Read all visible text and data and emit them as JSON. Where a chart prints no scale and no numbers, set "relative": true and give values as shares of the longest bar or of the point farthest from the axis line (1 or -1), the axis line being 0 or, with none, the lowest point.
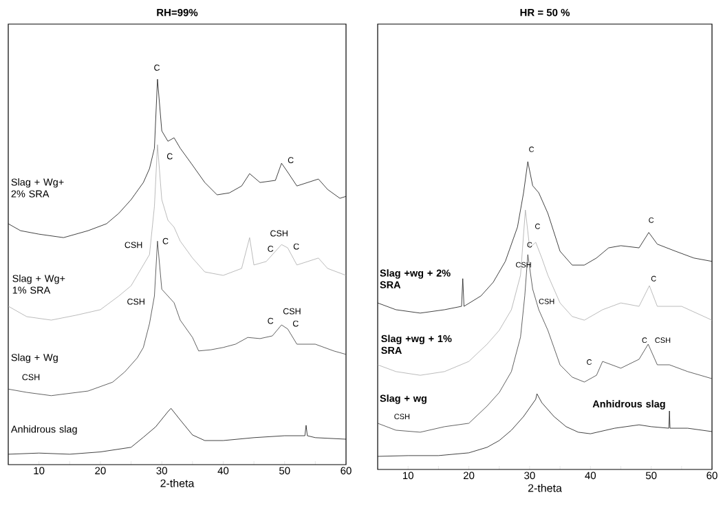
{
  "chart_data": [
    {
      "type": "line",
      "title": "RH=99%",
      "xlabel": "2-theta",
      "relative": true,
      "xlim": [
        5,
        60
      ],
      "xticks": [
        10,
        {
          "value": 15,
          "label": null
        },
        20,
        {
          "value": 25,
          "label": null
        },
        30,
        {
          "value": 35,
          "label": null
        },
        40,
        {
          "value": 45,
          "label": null
        },
        50,
        {
          "value": 55,
          "label": null
        },
        60
      ],
      "series": [
        {
          "name": "Anhidrous slag",
          "color": "#111111",
          "x": [
            5,
            10,
            15,
            20,
            25,
            27,
            29,
            31,
            31.5,
            33,
            35,
            37,
            40,
            45,
            50,
            53.3,
            53.5,
            53.7,
            55,
            60
          ],
          "values": [
            0.027,
            0.03,
            0.027,
            0.033,
            0.045,
            0.071,
            0.098,
            0.1375,
            0.146,
            0.116,
            0.077,
            0.0625,
            0.0625,
            0.07,
            0.075,
            0.075,
            0.102,
            0.075,
            0.07,
            0.066
          ]
        },
        {
          "name": "Slag + Wg",
          "color": "#3a3a3a",
          "x": [
            5,
            8,
            12,
            18,
            22,
            24,
            26,
            27,
            28,
            28.8,
            29.3,
            30,
            31,
            32,
            33,
            35,
            36,
            38,
            40,
            42,
            44,
            46,
            48,
            49.5,
            50.5,
            52,
            55,
            58,
            60
          ],
          "values": [
            0.196,
            0.1875,
            0.179,
            0.191,
            0.214,
            0.241,
            0.277,
            0.304,
            0.366,
            0.4375,
            0.58,
            0.455,
            0.4375,
            0.42,
            0.375,
            0.33,
            0.295,
            0.298,
            0.304,
            0.3125,
            0.33,
            0.327,
            0.334,
            0.3625,
            0.352,
            0.3125,
            0.3125,
            0.295,
            0.286
          ]
        },
        {
          "name": "Slag + Wg+ 1% SRA",
          "color": "#aaaaaa",
          "x": [
            5,
            8,
            12,
            16,
            20,
            23,
            25,
            27,
            28,
            28.8,
            29.3,
            30,
            31,
            32,
            33,
            35,
            37,
            40,
            43,
            44.3,
            45,
            47,
            49.5,
            50.5,
            52,
            55.5,
            57,
            60
          ],
          "values": [
            0.411,
            0.384,
            0.375,
            0.3875,
            0.402,
            0.4375,
            0.464,
            0.518,
            0.545,
            0.67,
            0.83,
            0.6875,
            0.634,
            0.616,
            0.58,
            0.536,
            0.5,
            0.491,
            0.509,
            0.589,
            0.518,
            0.527,
            0.571,
            0.5625,
            0.518,
            0.536,
            0.509,
            0.491
          ]
        },
        {
          "name": "Slag + Wg+ 2% SRA",
          "color": "#111111",
          "x": [
            5,
            7,
            10,
            14,
            18,
            21,
            23,
            25,
            27,
            28,
            28.8,
            29.3,
            30,
            31,
            32,
            33,
            35,
            37,
            39,
            41,
            43,
            44.3,
            46,
            48.5,
            49.5,
            50.5,
            52,
            55.5,
            57,
            59,
            60
          ],
          "values": [
            0.625,
            0.607,
            0.598,
            0.589,
            0.607,
            0.625,
            0.652,
            0.6875,
            0.732,
            0.768,
            0.821,
            1,
            0.866,
            0.839,
            0.848,
            0.821,
            0.777,
            0.732,
            0.7,
            0.705,
            0.723,
            0.755,
            0.732,
            0.7375,
            0.782,
            0.759,
            0.723,
            0.741,
            0.714,
            0.691,
            0.696
          ]
        }
      ],
      "annotations": [
        "C",
        "C",
        "C",
        "CSH",
        "CSH",
        "C",
        "C",
        "C",
        "CSH",
        "CSH",
        "C",
        "C",
        "CSH"
      ]
    },
    {
      "type": "line",
      "title": "HR = 50 %",
      "xlabel": "2-theta",
      "relative": true,
      "xlim": [
        5,
        60
      ],
      "xticks": [
        10,
        {
          "value": 15,
          "label": null
        },
        20,
        {
          "value": 25,
          "label": null
        },
        30,
        {
          "value": 35,
          "label": null
        },
        40,
        {
          "value": 45,
          "label": null
        },
        50,
        {
          "value": 55,
          "label": null
        },
        60
      ],
      "series": [
        {
          "name": "Anhidrous slag",
          "color": "#111111",
          "x": [
            5,
            10,
            15,
            20,
            23,
            25,
            27,
            29,
            31,
            31.2,
            32,
            34,
            36,
            38,
            40,
            44,
            48,
            50,
            52.9,
            53,
            53.1,
            56,
            60
          ],
          "values": [
            0.0425,
            0.045,
            0.045,
            0.054,
            0.072,
            0.094,
            0.1275,
            0.172,
            0.228,
            0.246,
            0.217,
            0.172,
            0.139,
            0.121,
            0.116,
            0.134,
            0.145,
            0.139,
            0.134,
            0.19,
            0.134,
            0.134,
            0.123
          ]
        },
        {
          "name": "Slag + wg",
          "color": "#3a3a3a",
          "x": [
            5,
            8,
            12,
            16,
            20,
            23,
            25,
            27,
            28.5,
            29.2,
            29.7,
            30.5,
            31.5,
            33,
            35,
            37,
            39,
            41,
            42,
            45,
            48,
            49.5,
            51,
            53,
            56,
            60
          ],
          "values": [
            0.15,
            0.1275,
            0.121,
            0.139,
            0.15,
            0.206,
            0.25,
            0.318,
            0.43,
            0.564,
            0.698,
            0.586,
            0.519,
            0.452,
            0.34,
            0.3,
            0.284,
            0.306,
            0.351,
            0.329,
            0.358,
            0.407,
            0.34,
            0.34,
            0.318,
            0.295
          ]
        },
        {
          "name": "Slag +wg + 1% SRA",
          "color": "#aaaaaa",
          "x": [
            5,
            8,
            12,
            16,
            20,
            23,
            25,
            27,
            28.5,
            29.3,
            30,
            31,
            32,
            33,
            35,
            37,
            39,
            42,
            45,
            48,
            49.7,
            51,
            55,
            60
          ],
          "values": [
            0.34,
            0.318,
            0.306,
            0.318,
            0.351,
            0.407,
            0.452,
            0.519,
            0.631,
            0.843,
            0.72,
            0.738,
            0.687,
            0.631,
            0.541,
            0.497,
            0.485,
            0.519,
            0.541,
            0.53,
            0.597,
            0.53,
            0.53,
            0.485
          ]
        },
        {
          "name": "Slag +wg + 2% SRA",
          "color": "#111111",
          "x": [
            5,
            8,
            12,
            16,
            18.8,
            19,
            19.2,
            22,
            24,
            26,
            28,
            29,
            29.7,
            30.5,
            31.5,
            33,
            35,
            37,
            39,
            41,
            43,
            45,
            48,
            49.6,
            51,
            54,
            57,
            60
          ],
          "values": [
            0.541,
            0.519,
            0.508,
            0.519,
            0.53,
            0.62,
            0.53,
            0.564,
            0.608,
            0.676,
            0.7875,
            0.899,
            1,
            0.922,
            0.899,
            0.832,
            0.709,
            0.664,
            0.664,
            0.687,
            0.72,
            0.727,
            0.72,
            0.77,
            0.732,
            0.709,
            0.687,
            0.676
          ]
        }
      ],
      "annotations": [
        "C",
        "C",
        "C",
        "CSH",
        "C",
        "C",
        "CSH",
        "C",
        "C",
        "CSH",
        "CSH"
      ]
    }
  ]
}
